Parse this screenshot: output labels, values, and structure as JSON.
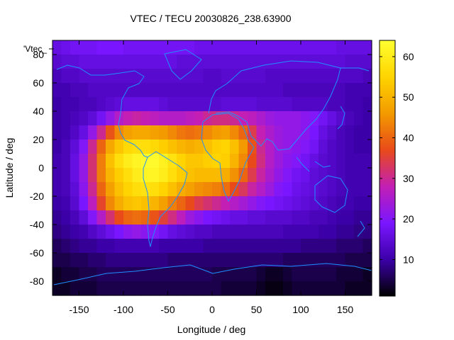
{
  "chart_data": {
    "type": "heatmap",
    "title": "VTEC / TECU 20030826_238.63900",
    "xlabel": "Longitude / deg",
    "ylabel": "Latitude / deg",
    "legend_key": "'Vtec_",
    "xlim": [
      -180,
      180
    ],
    "ylim": [
      -90,
      90
    ],
    "x_ticks": [
      -150,
      -100,
      -50,
      0,
      50,
      100,
      150
    ],
    "y_ticks": [
      -80,
      -60,
      -40,
      -20,
      0,
      20,
      40,
      60,
      80
    ],
    "colorbar": {
      "range": [
        1,
        64
      ],
      "ticks": [
        10,
        20,
        30,
        40,
        50,
        60
      ],
      "colormap": "gnuplot-default",
      "stops": [
        "#000000",
        "#3c00a8",
        "#7a16ff",
        "#c31fb4",
        "#e84a1a",
        "#f39a00",
        "#ffd400",
        "#ffff30"
      ]
    },
    "grid": false,
    "vtec_grid": {
      "latitudes": [
        85,
        75,
        65,
        55,
        45,
        35,
        25,
        15,
        5,
        -5,
        -15,
        -25,
        -35,
        -45,
        -55,
        -65,
        -75,
        -85
      ],
      "longitudes": [
        -175,
        -165,
        -155,
        -145,
        -135,
        -125,
        -115,
        -105,
        -95,
        -85,
        -75,
        -65,
        -55,
        -45,
        -35,
        -25,
        -15,
        -5,
        5,
        15,
        25,
        35,
        45,
        55,
        65,
        75,
        85,
        95,
        105,
        115,
        125,
        135,
        145,
        155,
        165,
        175
      ],
      "values": [
        [
          16,
          17,
          18,
          18,
          18,
          19,
          19,
          19,
          18,
          18,
          18,
          18,
          18,
          18,
          18,
          18,
          17,
          17,
          17,
          17,
          17,
          17,
          17,
          17,
          17,
          17,
          17,
          17,
          17,
          17,
          17,
          17,
          16,
          16,
          16,
          16
        ],
        [
          14,
          15,
          15,
          16,
          16,
          16,
          16,
          16,
          16,
          16,
          16,
          16,
          16,
          16,
          15,
          15,
          15,
          15,
          15,
          15,
          15,
          15,
          15,
          15,
          15,
          15,
          15,
          15,
          15,
          15,
          15,
          15,
          15,
          14,
          14,
          14
        ],
        [
          12,
          13,
          13,
          14,
          14,
          14,
          14,
          14,
          14,
          14,
          14,
          14,
          14,
          14,
          14,
          14,
          14,
          13,
          13,
          14,
          14,
          14,
          14,
          14,
          13,
          13,
          13,
          13,
          13,
          13,
          13,
          13,
          13,
          13,
          13,
          12
        ],
        [
          11,
          11,
          12,
          12,
          13,
          13,
          13,
          13,
          13,
          13,
          13,
          13,
          13,
          13,
          13,
          13,
          13,
          13,
          13,
          13,
          13,
          13,
          13,
          13,
          13,
          13,
          12,
          12,
          12,
          12,
          12,
          12,
          12,
          11,
          11,
          11
        ],
        [
          10,
          11,
          11,
          12,
          12,
          13,
          14,
          15,
          16,
          16,
          16,
          16,
          15,
          14,
          14,
          14,
          14,
          14,
          14,
          15,
          15,
          15,
          15,
          14,
          14,
          14,
          14,
          13,
          13,
          13,
          13,
          12,
          12,
          11,
          11,
          10
        ],
        [
          10,
          11,
          12,
          13,
          15,
          18,
          22,
          26,
          28,
          29,
          28,
          27,
          26,
          26,
          26,
          27,
          28,
          30,
          31,
          31,
          30,
          28,
          27,
          25,
          23,
          22,
          22,
          22,
          21,
          20,
          18,
          16,
          14,
          12,
          11,
          10
        ],
        [
          10,
          11,
          13,
          16,
          22,
          30,
          38,
          44,
          47,
          48,
          48,
          47,
          46,
          44,
          42,
          41,
          42,
          44,
          46,
          47,
          44,
          40,
          34,
          28,
          25,
          23,
          22,
          22,
          21,
          19,
          16,
          14,
          12,
          11,
          10,
          10
        ],
        [
          10,
          12,
          15,
          20,
          30,
          40,
          48,
          53,
          56,
          57,
          57,
          56,
          54,
          52,
          50,
          49,
          50,
          52,
          54,
          55,
          52,
          46,
          38,
          30,
          26,
          23,
          22,
          21,
          20,
          18,
          15,
          13,
          12,
          11,
          10,
          10
        ],
        [
          11,
          12,
          16,
          22,
          32,
          43,
          52,
          57,
          60,
          62,
          63,
          63,
          61,
          58,
          55,
          53,
          53,
          54,
          55,
          54,
          50,
          44,
          37,
          31,
          26,
          23,
          21,
          20,
          18,
          16,
          14,
          13,
          12,
          11,
          11,
          11
        ],
        [
          11,
          12,
          16,
          22,
          32,
          43,
          50,
          54,
          57,
          60,
          62,
          62,
          60,
          57,
          54,
          52,
          51,
          51,
          51,
          49,
          45,
          40,
          34,
          29,
          25,
          22,
          20,
          18,
          17,
          15,
          14,
          13,
          12,
          11,
          11,
          11
        ],
        [
          11,
          12,
          15,
          21,
          30,
          40,
          47,
          52,
          55,
          57,
          58,
          57,
          55,
          52,
          49,
          47,
          45,
          44,
          43,
          41,
          37,
          33,
          29,
          26,
          23,
          20,
          19,
          17,
          16,
          15,
          14,
          13,
          12,
          11,
          11,
          11
        ],
        [
          10,
          11,
          14,
          19,
          27,
          36,
          44,
          49,
          52,
          53,
          52,
          50,
          47,
          43,
          40,
          37,
          34,
          32,
          30,
          28,
          26,
          24,
          22,
          20,
          19,
          18,
          17,
          16,
          15,
          14,
          13,
          12,
          11,
          11,
          10,
          10
        ],
        [
          9,
          10,
          12,
          15,
          20,
          26,
          32,
          37,
          40,
          41,
          40,
          38,
          35,
          31,
          27,
          23,
          21,
          19,
          18,
          17,
          16,
          16,
          15,
          15,
          14,
          14,
          14,
          13,
          13,
          12,
          12,
          11,
          10,
          10,
          9,
          9
        ],
        [
          8,
          9,
          10,
          11,
          13,
          15,
          17,
          19,
          21,
          22,
          21,
          20,
          18,
          16,
          15,
          14,
          13,
          13,
          12,
          12,
          12,
          12,
          12,
          12,
          12,
          12,
          11,
          11,
          11,
          11,
          10,
          10,
          9,
          9,
          8,
          8
        ],
        [
          6,
          7,
          8,
          9,
          9,
          10,
          10,
          11,
          11,
          11,
          11,
          11,
          10,
          10,
          10,
          10,
          10,
          9,
          9,
          9,
          9,
          9,
          9,
          9,
          9,
          9,
          9,
          9,
          8,
          8,
          8,
          8,
          7,
          7,
          7,
          6
        ],
        [
          5,
          5,
          6,
          6,
          7,
          7,
          8,
          8,
          8,
          8,
          8,
          8,
          8,
          7,
          7,
          7,
          7,
          7,
          7,
          7,
          7,
          7,
          7,
          7,
          7,
          7,
          6,
          6,
          6,
          6,
          6,
          6,
          6,
          5,
          5,
          5
        ],
        [
          3,
          4,
          4,
          5,
          5,
          6,
          6,
          6,
          6,
          6,
          6,
          6,
          6,
          6,
          6,
          6,
          6,
          6,
          5,
          5,
          5,
          5,
          5,
          4,
          3,
          3,
          4,
          5,
          5,
          5,
          5,
          5,
          4,
          4,
          4,
          3
        ],
        [
          3,
          3,
          4,
          4,
          4,
          5,
          5,
          5,
          5,
          5,
          5,
          5,
          5,
          5,
          5,
          5,
          5,
          5,
          5,
          4,
          4,
          4,
          4,
          3,
          2,
          2,
          3,
          4,
          4,
          4,
          4,
          4,
          4,
          3,
          3,
          3
        ]
      ]
    }
  }
}
